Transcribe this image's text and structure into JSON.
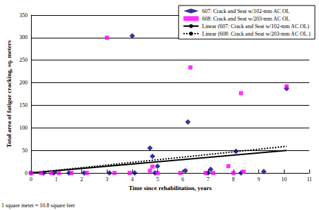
{
  "chart_data": {
    "type": "scatter",
    "x_label": "Time since rehabilitation, years",
    "y_label": "Total area of fatigue cracking, sq. meters",
    "annotation": "1 square meter = 10.8 square feet",
    "xlim": [
      0,
      11
    ],
    "xticks": [
      0,
      1,
      2,
      3,
      4,
      5,
      6,
      7,
      8,
      9,
      10,
      11
    ],
    "ylim": [
      0,
      350
    ],
    "yticks": [
      0,
      50,
      100,
      150,
      200,
      250,
      300,
      350
    ],
    "grid": true,
    "legend": "top-right",
    "series": [
      {
        "name": "607: Crack and Seat w/102-mm AC OL",
        "type": "scatter",
        "marker": "diamond",
        "color": "#000080",
        "x": [
          0,
          0.5,
          0.9,
          1.5,
          2.1,
          3.1,
          4.0,
          4.1,
          4.7,
          4.8,
          4.9,
          5.0,
          6.1,
          6.2,
          7.0,
          7.1,
          8.1,
          8.3,
          9.2,
          10.1
        ],
        "values": [
          0,
          0,
          0,
          0,
          0,
          0,
          304,
          0,
          55,
          37,
          0,
          15,
          5,
          113,
          0,
          8,
          48,
          0,
          3,
          187
        ]
      },
      {
        "name": "608: Crack and Seat w/203-mm AC OL",
        "type": "scatter",
        "marker": "square",
        "color": "#FF00FF",
        "x": [
          0,
          0.4,
          0.8,
          1.1,
          1.6,
          2.2,
          3.0,
          3.3,
          3.9,
          4.7,
          4.8,
          5.0,
          5.9,
          6.3,
          6.9,
          7.2,
          7.8,
          8.0,
          8.3,
          8.4,
          10.1
        ],
        "values": [
          0,
          0,
          0,
          0,
          0,
          0,
          300,
          0,
          0,
          5,
          14,
          0,
          0,
          234,
          0,
          0,
          15,
          0,
          177,
          3,
          192
        ]
      },
      {
        "name": "Linear (607: Crack and Seat w/102-mm AC OL)",
        "type": "line",
        "line_style": "solid",
        "color": "#000000",
        "x": [
          0,
          10.1
        ],
        "values": [
          0,
          50
        ]
      },
      {
        "name": "Linear (608: Crack and Seat w/203-mm AC OL.)",
        "type": "line",
        "line_style": "dotted",
        "color": "#000000",
        "x": [
          0,
          10.1
        ],
        "values": [
          0,
          59
        ]
      }
    ]
  }
}
